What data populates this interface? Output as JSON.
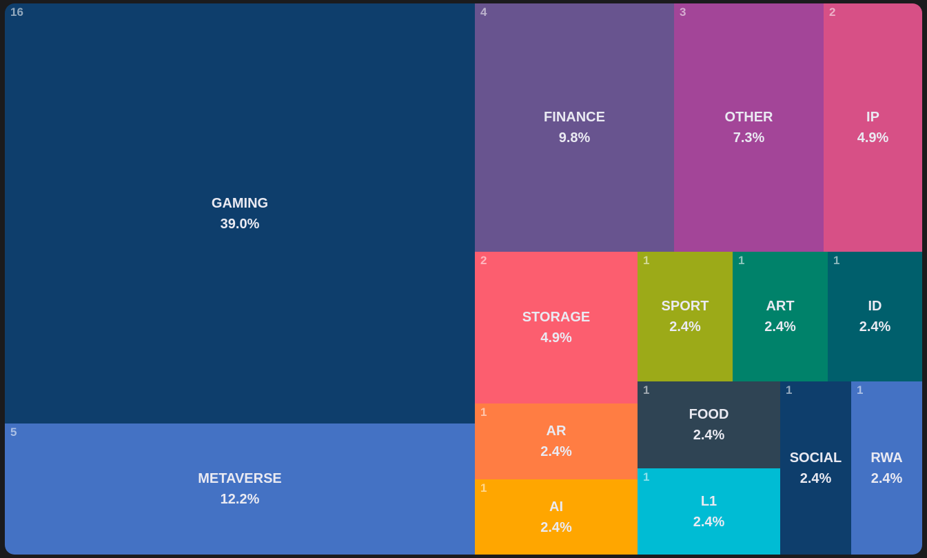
{
  "chart_data": {
    "type": "treemap",
    "items": [
      {
        "name": "GAMING",
        "count": 16,
        "percent": "39.0%",
        "color": "#0e3e6c"
      },
      {
        "name": "METAVERSE",
        "count": 5,
        "percent": "12.2%",
        "color": "#4472c4"
      },
      {
        "name": "FINANCE",
        "count": 4,
        "percent": "9.8%",
        "color": "#68548f"
      },
      {
        "name": "OTHER",
        "count": 3,
        "percent": "7.3%",
        "color": "#a34598"
      },
      {
        "name": "IP",
        "count": 2,
        "percent": "4.9%",
        "color": "#d75086"
      },
      {
        "name": "STORAGE",
        "count": 2,
        "percent": "4.9%",
        "color": "#fc5e6f"
      },
      {
        "name": "SPORT",
        "count": 1,
        "percent": "2.4%",
        "color": "#9caa18"
      },
      {
        "name": "ART",
        "count": 1,
        "percent": "2.4%",
        "color": "#00826a"
      },
      {
        "name": "ID",
        "count": 1,
        "percent": "2.4%",
        "color": "#005f6c"
      },
      {
        "name": "AR",
        "count": 1,
        "percent": "2.4%",
        "color": "#ff7d43"
      },
      {
        "name": "AI",
        "count": 1,
        "percent": "2.4%",
        "color": "#ffa600"
      },
      {
        "name": "FOOD",
        "count": 1,
        "percent": "2.4%",
        "color": "#2f4454"
      },
      {
        "name": "L1",
        "count": 1,
        "percent": "2.4%",
        "color": "#00bcd4"
      },
      {
        "name": "SOCIAL",
        "count": 1,
        "percent": "2.4%",
        "color": "#0e3e6c"
      },
      {
        "name": "RWA",
        "count": 1,
        "percent": "2.4%",
        "color": "#4472c4"
      }
    ]
  }
}
